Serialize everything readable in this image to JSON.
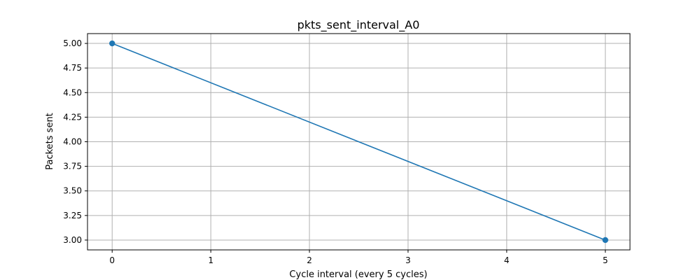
{
  "chart_data": {
    "type": "line",
    "title": "pkts_sent_interval_A0",
    "xlabel": "Cycle interval (every 5 cycles)",
    "ylabel": "Packets sent",
    "xlim": [
      -0.25,
      5.25
    ],
    "ylim": [
      2.9,
      5.1
    ],
    "xticks": [
      0,
      1,
      2,
      3,
      4,
      5
    ],
    "yticks": [
      3.0,
      3.25,
      3.5,
      3.75,
      4.0,
      4.25,
      4.5,
      4.75,
      5.0
    ],
    "xtick_labels": [
      "0",
      "1",
      "2",
      "3",
      "4",
      "5"
    ],
    "ytick_labels": [
      "3.00",
      "3.25",
      "3.50",
      "3.75",
      "4.00",
      "4.25",
      "4.50",
      "4.75",
      "5.00"
    ],
    "grid": true,
    "series": [
      {
        "x": [
          0,
          5
        ],
        "y": [
          5.0,
          3.0
        ],
        "color": "#1f77b4",
        "marker": "circle"
      }
    ]
  }
}
